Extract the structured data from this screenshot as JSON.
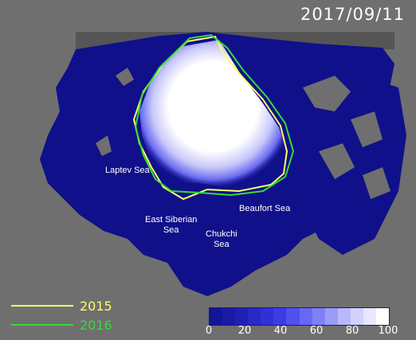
{
  "date": "2017/09/11",
  "seas": {
    "laptev": "Laptev Sea",
    "east_siberian_line1": "East Siberian",
    "east_siberian_line2": "Sea",
    "chukchi_line1": "Chukchi",
    "chukchi_line2": "Sea",
    "beaufort": "Beaufort Sea"
  },
  "legend": [
    {
      "label": "2015",
      "color": "#ffff66"
    },
    {
      "label": "2016",
      "color": "#33dd33"
    }
  ],
  "colorbar": {
    "ticks": [
      "0",
      "20",
      "40",
      "60",
      "80",
      "100"
    ],
    "unit_range": [
      0,
      100
    ],
    "colors": [
      "#141496",
      "#1a1aa6",
      "#2020b6",
      "#2828c6",
      "#3030d6",
      "#3c3ce4",
      "#5050ee",
      "#6868f4",
      "#8080f6",
      "#9c9cf8",
      "#b8b8fa",
      "#d2d2fc",
      "#e8e8fe",
      "#ffffff"
    ]
  },
  "colors": {
    "land": "#6f6f6f",
    "ocean": "#10108a",
    "ice": "#ffffff"
  }
}
